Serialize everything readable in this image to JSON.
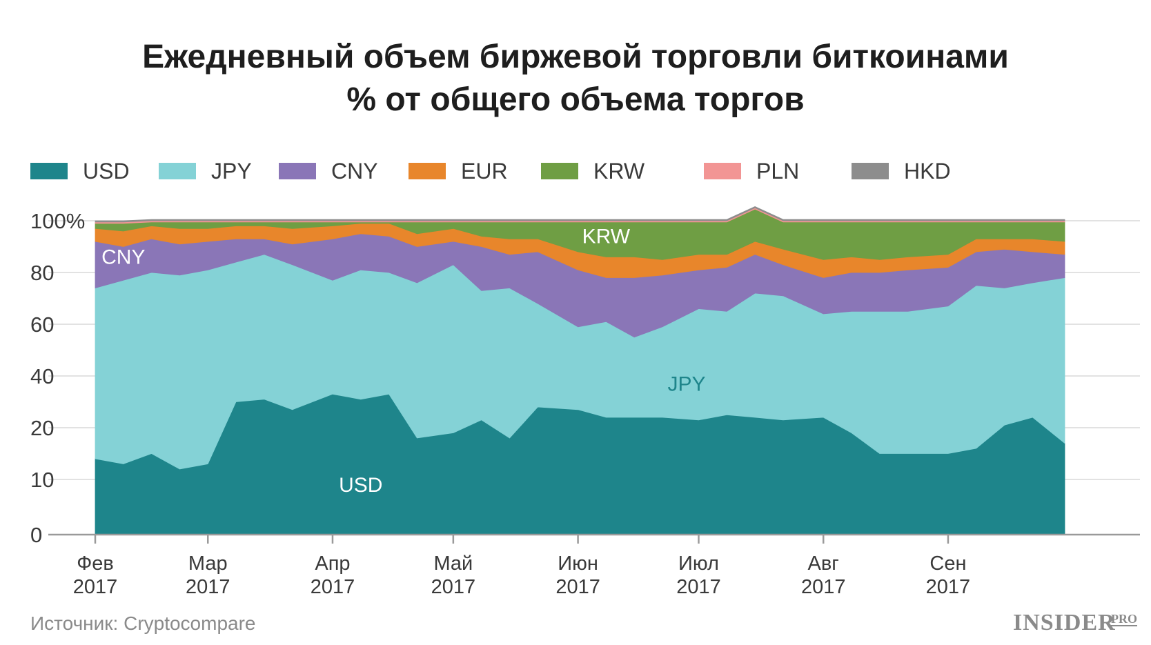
{
  "title_line1": "Ежедневный объем биржевой торговли биткоинами",
  "title_line2": "% от общего объема торгов",
  "source": "Источник: Cryptocompare",
  "logo": {
    "main": "INSIDER",
    "sup": "PRO"
  },
  "chart_data": {
    "type": "area",
    "stacked": true,
    "y_scale": "custom-nonlinear",
    "y_ticks": [
      {
        "value": 0,
        "label": "0"
      },
      {
        "value": 10,
        "label": "10"
      },
      {
        "value": 20,
        "label": "20"
      },
      {
        "value": 40,
        "label": "40"
      },
      {
        "value": 60,
        "label": "60"
      },
      {
        "value": 80,
        "label": "80"
      },
      {
        "value": 100,
        "label": "100%"
      }
    ],
    "x_ticks": [
      {
        "date": "2017-02-01",
        "line1": "Фев",
        "line2": "2017"
      },
      {
        "date": "2017-03-01",
        "line1": "Мар",
        "line2": "2017"
      },
      {
        "date": "2017-04-01",
        "line1": "Апр",
        "line2": "2017"
      },
      {
        "date": "2017-05-01",
        "line1": "Май",
        "line2": "2017"
      },
      {
        "date": "2017-06-01",
        "line1": "Июн",
        "line2": "2017"
      },
      {
        "date": "2017-07-01",
        "line1": "Июл",
        "line2": "2017"
      },
      {
        "date": "2017-08-01",
        "line1": "Авг",
        "line2": "2017"
      },
      {
        "date": "2017-09-01",
        "line1": "Сен",
        "line2": "2017"
      }
    ],
    "grid": true,
    "legend_position": "top",
    "dates": [
      "2017-02-01",
      "2017-02-08",
      "2017-02-15",
      "2017-02-22",
      "2017-03-01",
      "2017-03-08",
      "2017-03-15",
      "2017-03-22",
      "2017-04-01",
      "2017-04-08",
      "2017-04-15",
      "2017-04-22",
      "2017-05-01",
      "2017-05-08",
      "2017-05-15",
      "2017-05-22",
      "2017-06-01",
      "2017-06-08",
      "2017-06-15",
      "2017-06-22",
      "2017-07-01",
      "2017-07-08",
      "2017-07-15",
      "2017-07-22",
      "2017-08-01",
      "2017-08-08",
      "2017-08-15",
      "2017-08-22",
      "2017-09-01",
      "2017-09-08",
      "2017-09-15",
      "2017-09-22",
      "2017-09-30"
    ],
    "series": [
      {
        "name": "USD",
        "color": "#1e858b",
        "values": [
          14,
          13,
          15,
          12,
          13,
          30,
          31,
          27,
          33,
          31,
          33,
          18,
          19,
          23,
          18,
          28,
          27,
          24,
          24,
          24,
          23,
          25,
          24,
          23,
          24,
          19,
          15,
          15,
          15,
          16,
          21,
          24,
          17
        ]
      },
      {
        "name": "JPY",
        "color": "#84d2d6",
        "values": [
          60,
          64,
          65,
          67,
          68,
          54,
          56,
          56,
          44,
          50,
          47,
          58,
          64,
          50,
          56,
          40,
          32,
          37,
          31,
          35,
          43,
          40,
          48,
          48,
          40,
          46,
          50,
          50,
          52,
          59,
          53,
          52,
          61
        ]
      },
      {
        "name": "CNY",
        "color": "#8a76b7",
        "values": [
          18,
          13,
          13,
          12,
          11,
          9,
          6,
          8,
          16,
          14,
          14,
          14,
          9,
          17,
          13,
          20,
          22,
          17,
          23,
          20,
          15,
          17,
          15,
          12,
          14,
          15,
          15,
          16,
          15,
          13,
          15,
          12,
          9
        ]
      },
      {
        "name": "EUR",
        "color": "#e8862b",
        "values": [
          5,
          6,
          5,
          6,
          5,
          5,
          5,
          6,
          5,
          4,
          5,
          5,
          5,
          4,
          6,
          5,
          7,
          8,
          8,
          6,
          6,
          5,
          5,
          6,
          7,
          6,
          5,
          5,
          5,
          5,
          4,
          5,
          5
        ]
      },
      {
        "name": "KRW",
        "color": "#6f9e44",
        "values": [
          2,
          3,
          1.5,
          2.5,
          2.5,
          1.5,
          1.5,
          2.5,
          1.5,
          0.5,
          0.5,
          4.5,
          2.5,
          5.5,
          6.5,
          6.5,
          11.5,
          13.5,
          13.5,
          14.5,
          12.5,
          12.5,
          12.5,
          10.5,
          14.5,
          13.5,
          14.5,
          13.5,
          12.5,
          6.5,
          6.5,
          6.5,
          7.5
        ]
      },
      {
        "name": "PLN",
        "color": "#f29594",
        "values": [
          0.5,
          0.5,
          0.5,
          0.5,
          0.5,
          0.5,
          0.5,
          0.5,
          0.5,
          0.5,
          0.5,
          0.5,
          0.5,
          0.5,
          0.5,
          0.5,
          0.5,
          0.5,
          0.5,
          0.5,
          0.5,
          0.5,
          0.5,
          0.5,
          0.5,
          0.5,
          0.5,
          0.5,
          0.5,
          0.5,
          0.5,
          0.5,
          0.5
        ]
      },
      {
        "name": "HKD",
        "color": "#8d8d8d",
        "values": [
          0.5,
          0.5,
          0.5,
          0.5,
          0.5,
          0.5,
          0.5,
          0.5,
          0.5,
          0.5,
          0.5,
          0.5,
          0.5,
          0.5,
          0.5,
          0.5,
          0.5,
          0.5,
          0.5,
          0.5,
          0.5,
          0.5,
          0.5,
          0.5,
          0.5,
          0.5,
          0.5,
          0.5,
          0.5,
          0.5,
          0.5,
          0.5,
          0.5
        ]
      }
    ],
    "annotations": [
      {
        "text": "CNY",
        "date": "2017-02-08",
        "y": 86,
        "color": "#ffffff"
      },
      {
        "text": "KRW",
        "date": "2017-06-08",
        "y": 94,
        "color": "#ffffff"
      },
      {
        "text": "JPY",
        "date": "2017-06-28",
        "y": 37,
        "color": "#1e858b"
      },
      {
        "text": "USD",
        "date": "2017-04-08",
        "y": 9,
        "color": "#ffffff"
      }
    ]
  }
}
